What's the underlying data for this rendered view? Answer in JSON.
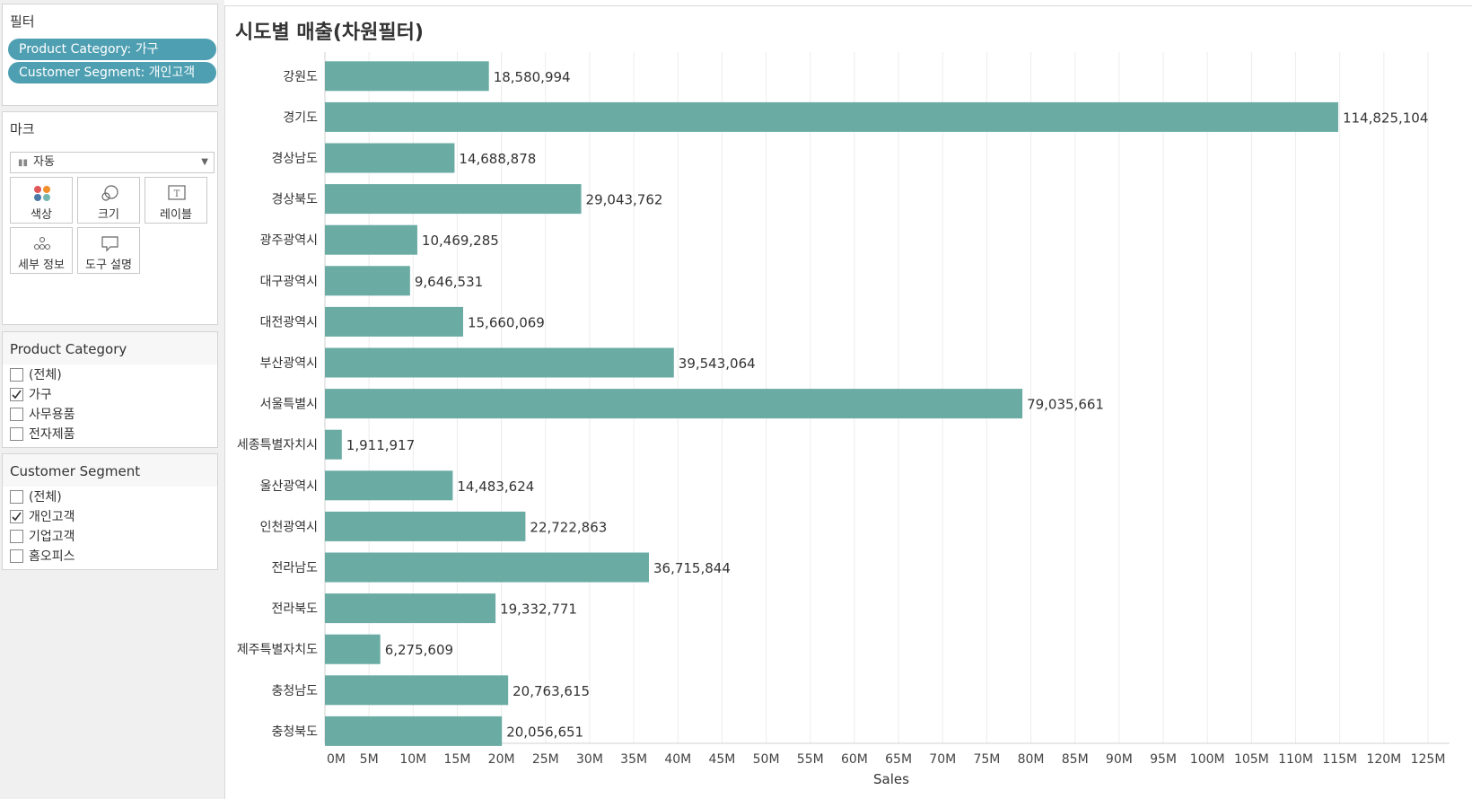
{
  "sidebar": {
    "filters": {
      "title": "필터",
      "pills": [
        "Product Category: 가구",
        "Customer Segment: 개인고객"
      ]
    },
    "marks": {
      "title": "마크",
      "type_selected": "자동",
      "buttons": [
        "색상",
        "크기",
        "레이블",
        "세부 정보",
        "도구 설명"
      ]
    },
    "product_category": {
      "title": "Product Category",
      "items": [
        {
          "label": "(전체)",
          "checked": false
        },
        {
          "label": "가구",
          "checked": true
        },
        {
          "label": "사무용품",
          "checked": false
        },
        {
          "label": "전자제품",
          "checked": false
        }
      ]
    },
    "customer_segment": {
      "title": "Customer Segment",
      "items": [
        {
          "label": "(전체)",
          "checked": false
        },
        {
          "label": "개인고객",
          "checked": true
        },
        {
          "label": "기업고객",
          "checked": false
        },
        {
          "label": "홈오피스",
          "checked": false
        }
      ]
    }
  },
  "colors": {
    "bar": "#6aaba4",
    "pill": "#4e9fb2",
    "grid": "#ececec"
  },
  "chart_data": {
    "type": "bar",
    "orientation": "horizontal",
    "title": "시도별 매출(차원필터)",
    "xlabel": "Sales",
    "ylabel": "",
    "xlim": [
      0,
      125000000
    ],
    "grid": "vertical lines every 5M",
    "x_ticks": [
      "0M",
      "5M",
      "10M",
      "15M",
      "20M",
      "25M",
      "30M",
      "35M",
      "40M",
      "45M",
      "50M",
      "55M",
      "60M",
      "65M",
      "70M",
      "75M",
      "80M",
      "85M",
      "90M",
      "95M",
      "100M",
      "105M",
      "110M",
      "115M",
      "120M",
      "125M"
    ],
    "categories": [
      "강원도",
      "경기도",
      "경상남도",
      "경상북도",
      "광주광역시",
      "대구광역시",
      "대전광역시",
      "부산광역시",
      "서울특별시",
      "세종특별자치시",
      "울산광역시",
      "인천광역시",
      "전라남도",
      "전라북도",
      "제주특별자치도",
      "충청남도",
      "충청북도"
    ],
    "values": [
      18580994,
      114825104,
      14688878,
      29043762,
      10469285,
      9646531,
      15660069,
      39543064,
      79035661,
      1911917,
      14483624,
      22722863,
      36715844,
      19332771,
      6275609,
      20763615,
      20056651
    ],
    "labels": [
      "18,580,994",
      "114,825,104",
      "14,688,878",
      "29,043,762",
      "10,469,285",
      "9,646,531",
      "15,660,069",
      "39,543,064",
      "79,035,661",
      "1,911,917",
      "14,483,624",
      "22,722,863",
      "36,715,844",
      "19,332,771",
      "6,275,609",
      "20,763,615",
      "20,056,651"
    ]
  }
}
